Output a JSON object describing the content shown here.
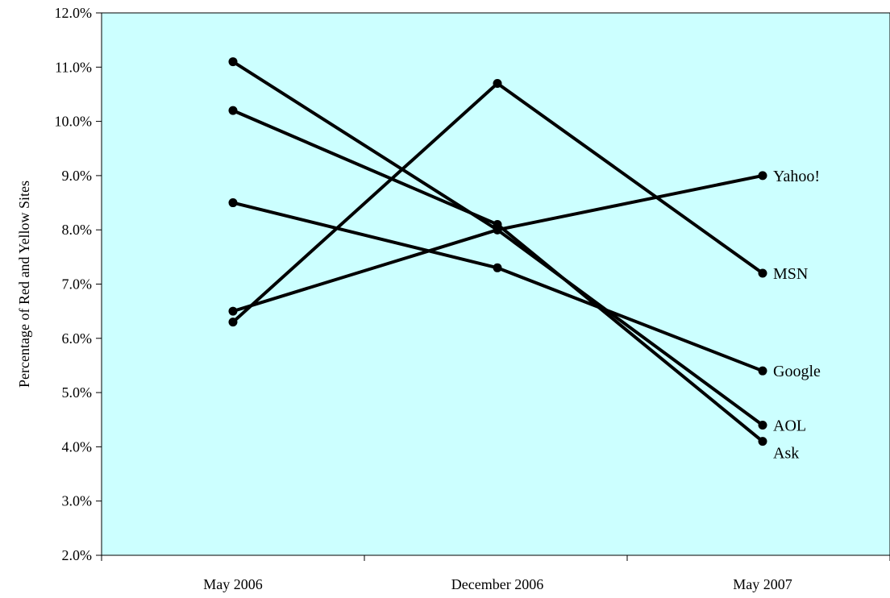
{
  "chart_data": {
    "type": "line",
    "title": "",
    "xlabel": "",
    "ylabel": "Percentage of Red and Yellow Sites",
    "categories": [
      "May 2006",
      "December 2006",
      "May 2007"
    ],
    "ylim": [
      2.0,
      12.0
    ],
    "yticks": [
      2.0,
      3.0,
      4.0,
      5.0,
      6.0,
      7.0,
      8.0,
      9.0,
      10.0,
      11.0,
      12.0
    ],
    "ytick_format": "percent_1dp",
    "grid": false,
    "plot_background": "#ccffff",
    "line_color": "#000000",
    "series": [
      {
        "name": "Yahoo!",
        "values": [
          6.5,
          8.0,
          9.0
        ]
      },
      {
        "name": "MSN",
        "values": [
          6.3,
          10.7,
          7.2
        ]
      },
      {
        "name": "Google",
        "values": [
          8.5,
          7.3,
          5.4
        ]
      },
      {
        "name": "AOL",
        "values": [
          11.1,
          8.0,
          4.4
        ]
      },
      {
        "name": "Ask",
        "values": [
          10.2,
          8.1,
          4.1
        ]
      }
    ]
  }
}
